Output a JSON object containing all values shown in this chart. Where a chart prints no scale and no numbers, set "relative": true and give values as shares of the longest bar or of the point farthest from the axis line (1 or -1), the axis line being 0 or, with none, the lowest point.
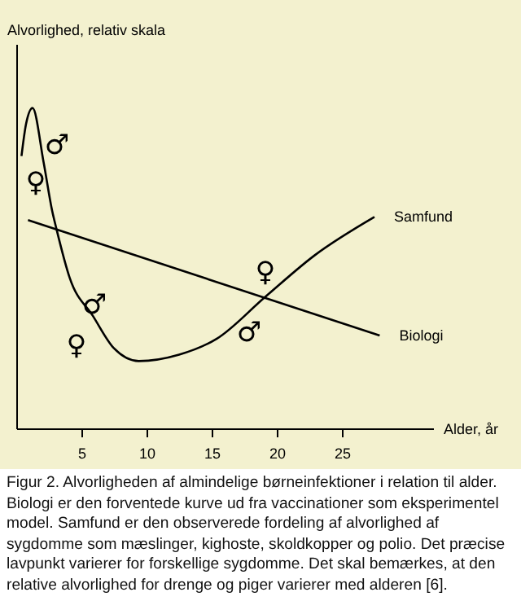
{
  "chart_data": {
    "type": "line",
    "relative": true,
    "ylabel": "Alvorlighed, relativ skala",
    "xlabel": "Alder, år",
    "xlim": [
      0,
      32
    ],
    "xticks": [
      5,
      10,
      15,
      20,
      25
    ],
    "series": [
      {
        "name": "Samfund",
        "color": "#000000",
        "x": [
          0.4,
          0.75,
          1.25,
          2.1,
          2.75,
          3.1,
          4.1,
          5.9,
          7.5,
          9.4,
          12.5,
          15.4,
          19.1,
          22.9,
          27.5
        ],
        "values": [
          0.85,
          0.95,
          1,
          0.83,
          0.68,
          0.62,
          0.47,
          0.35,
          0.25,
          0.21,
          0.23,
          0.28,
          0.41,
          0.54,
          0.66
        ]
      },
      {
        "name": "Biologi",
        "color": "#000000",
        "x": [
          0.9,
          27.9
        ],
        "values": [
          0.65,
          0.29
        ]
      }
    ],
    "annotations": [
      "♀",
      "♂",
      "♀",
      "♂",
      "♂",
      "♀",
      "Figur 2. Alvorligheden af almindelige børneinfektioner i relation til alder. Biologi er den forventede kurve ud fra vaccinationer som eksperimentel model. Samfund er den observerede fordeling af alvorlighed af sygdomme som mæslinger, kighoste, skoldkopper og polio. Det præcise lavpunkt varierer for forskellige sygdomme. Det skal bemærkes, at den relative alvorlighed for drenge og piger varierer med alderen [6]."
    ]
  }
}
